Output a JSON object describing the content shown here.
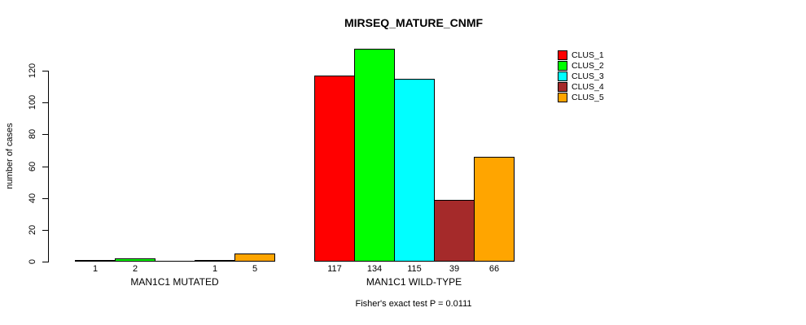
{
  "chart_data": {
    "type": "bar",
    "title": "MIRSEQ_MATURE_CNMF",
    "ylabel": "number of cases",
    "xlabel": "",
    "ylim": [
      0,
      120
    ],
    "yticks": [
      0,
      20,
      40,
      60,
      80,
      100,
      120
    ],
    "grid": false,
    "legend_position": "top-right",
    "series": [
      {
        "name": "CLUS_1",
        "color": "#ff0000"
      },
      {
        "name": "CLUS_2",
        "color": "#00ff00"
      },
      {
        "name": "CLUS_3",
        "color": "#00ffff"
      },
      {
        "name": "CLUS_4",
        "color": "#a52a2a"
      },
      {
        "name": "CLUS_5",
        "color": "#ffa500"
      }
    ],
    "groups": [
      {
        "label": "MAN1C1 MUTATED",
        "values": [
          1,
          2,
          0,
          1,
          5
        ],
        "bar_labels": [
          "1",
          "2",
          "",
          "1",
          "5"
        ]
      },
      {
        "label": "MAN1C1 WILD-TYPE",
        "values": [
          117,
          134,
          115,
          39,
          66
        ],
        "bar_labels": [
          "117",
          "134",
          "115",
          "39",
          "66"
        ]
      }
    ],
    "annotation": "Fisher's exact test P = 0.0111"
  }
}
